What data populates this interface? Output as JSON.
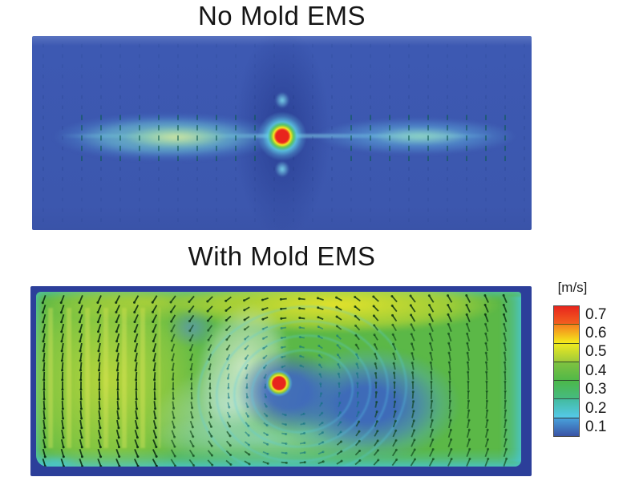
{
  "figure": {
    "panels": [
      {
        "title": "No Mold EMS"
      },
      {
        "title": "With Mold EMS"
      }
    ],
    "colorbar": {
      "unit_label": "[m/s]",
      "tick_labels": [
        "0.7",
        "0.6",
        "0.5",
        "0.4",
        "0.3",
        "0.2",
        "0.1"
      ],
      "segment_gradients": [
        [
          "#e8251d",
          "#f2601f"
        ],
        [
          "#f57f1e",
          "#f4ec1b"
        ],
        [
          "#eeea20",
          "#a0cb3a"
        ],
        [
          "#7fc240",
          "#52b848"
        ],
        [
          "#4cb84a",
          "#46ba80"
        ],
        [
          "#43bb9f",
          "#55c9ea"
        ],
        [
          "#48a0da",
          "#3a53a5"
        ]
      ]
    }
  },
  "chart_data": [
    {
      "type": "heatmap",
      "title": "No Mold EMS",
      "quantity": "flow velocity magnitude in mold cross-section",
      "units": "m/s",
      "colormap": "jet (blue=low, red=high)",
      "color_scale_range": [
        0.1,
        0.7
      ],
      "colorbar_ticks": [
        0.7,
        0.6,
        0.5,
        0.4,
        0.3,
        0.2,
        0.1
      ],
      "overlay": "velocity vector arrows on a regular grid",
      "features": [
        "background flow ~0.1 m/s (dark blue) over most of the domain",
        "thin horizontal jet bands ~0.2-0.35 m/s (cyan-green) extending left and right from the center at mid-height",
        "velocity maximum >0.7 m/s (red spot with yellow-green ring and cyan halo) at the central nozzle, ~50% width / 51% height",
        "small secondary cyan spots directly above and below the nozzle"
      ]
    },
    {
      "type": "heatmap",
      "title": "With Mold EMS",
      "quantity": "flow velocity magnitude in mold cross-section",
      "units": "m/s",
      "colormap": "jet (blue=low, red=high)",
      "color_scale_range": [
        0.1,
        0.7
      ],
      "colorbar_ticks": [
        0.7,
        0.6,
        0.5,
        0.4,
        0.3,
        0.2,
        0.1
      ],
      "overlay": "velocity vector arrows on a regular grid, circulating around a vortex",
      "features": [
        "large swirling recirculation ~0.3-0.45 m/s (green) filling the mold",
        "high-velocity yellow band ~0.5-0.6 m/s along the top and in the left region",
        "low-velocity blue vortex core ~0.1-0.2 m/s right of center, ringed by cyan arcs",
        "velocity maximum >0.7 m/s (red spot with yellow-green ring) at the nozzle, ~50% width / 49% height",
        "pale low-gradient spiral band curving from top-center down around the vortex",
        "dark blue rim around the field with cyan boundary-layer edges"
      ]
    }
  ]
}
